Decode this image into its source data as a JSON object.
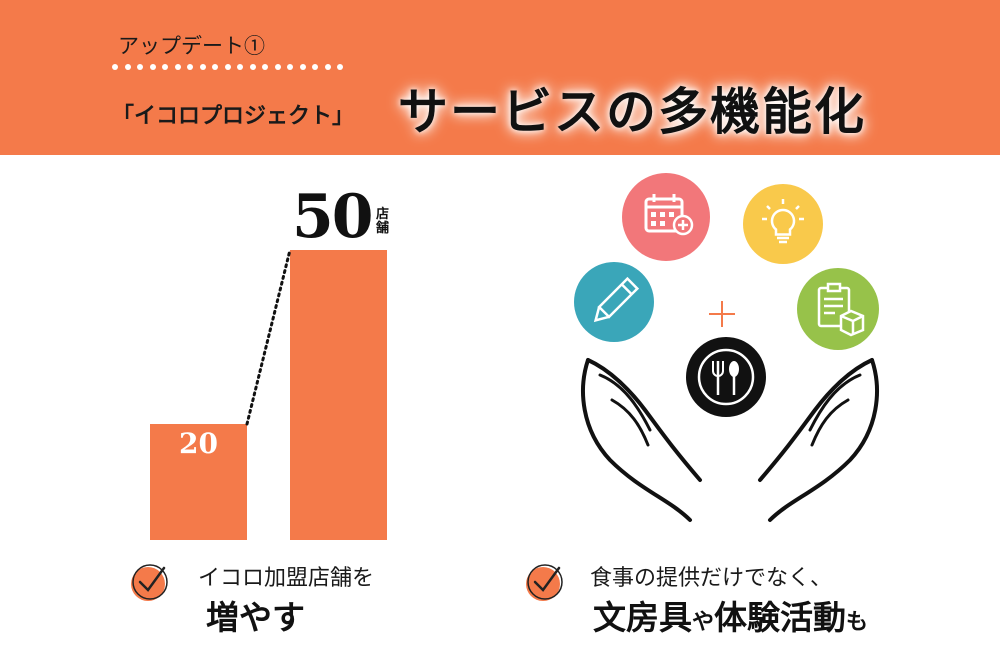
{
  "header": {
    "update_label": "アップデート①",
    "project_name": "「イコロプロジェクト」",
    "title": "サービスの多機能化"
  },
  "chart_data": {
    "type": "bar",
    "values": [
      20,
      50
    ],
    "data_labels": [
      "20",
      "50"
    ],
    "unit": "店舗",
    "connector": "dotted"
  },
  "left_caption": {
    "line1": "イコロ加盟店舗を",
    "line2": "増やす"
  },
  "right_caption": {
    "line1": "食事の提供だけでなく、",
    "line2_a": "文房具",
    "line2_b": "や",
    "line2_c": "体験活動",
    "line2_d": "も"
  },
  "icons": [
    "calendar-icon",
    "lightbulb-icon",
    "pencil-icon",
    "clipboard-box-icon",
    "plate-fork-spoon-icon",
    "plus-icon",
    "open-hands-icon",
    "checkmark-icon"
  ],
  "colors": {
    "accent": "#f47a4a",
    "calendar_circle": "#f2777a",
    "bulb_circle": "#f9c94b",
    "pencil_circle": "#3aa6b9",
    "clipboard_circle": "#97c24a"
  }
}
